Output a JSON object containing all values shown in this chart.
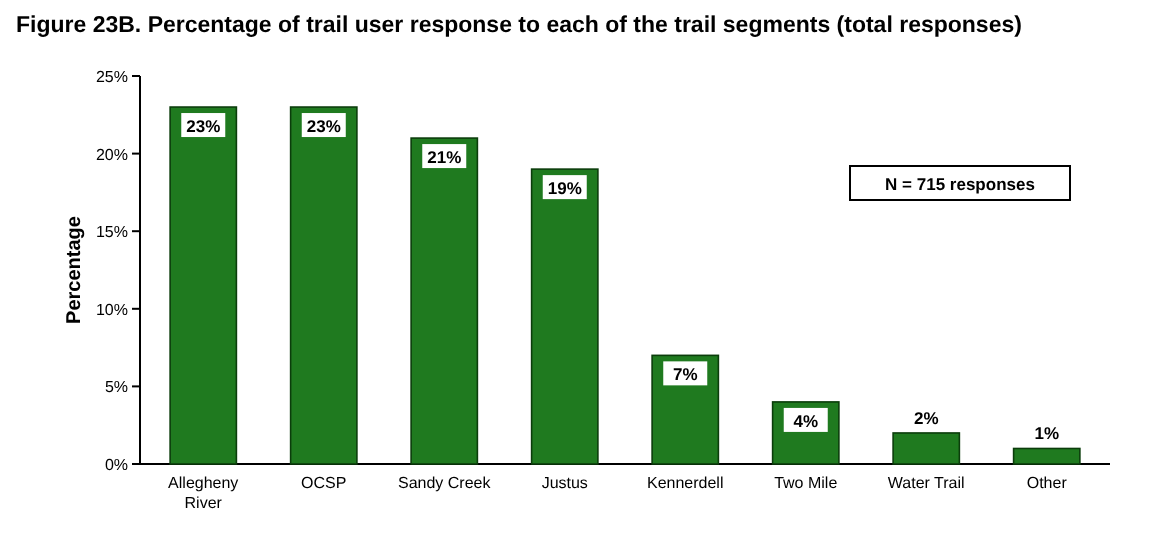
{
  "chart_data": {
    "type": "bar",
    "title": "Figure 23B.  Percentage of trail user response to each of the trail segments (total responses)",
    "ylabel": "Percentage",
    "categories": [
      "Allegheny River",
      "OCSP",
      "Sandy Creek",
      "Justus",
      "Kennerdell",
      "Two Mile",
      "Water Trail",
      "Other"
    ],
    "values": [
      23,
      23,
      21,
      19,
      7,
      4,
      2,
      1
    ],
    "value_labels": [
      "23%",
      "23%",
      "21%",
      "19%",
      "7%",
      "4%",
      "2%",
      "1%"
    ],
    "color": "#1f7a1f",
    "ylim": [
      0,
      25
    ],
    "yticks": [
      {
        "value": 0,
        "label": "0%"
      },
      {
        "value": 5,
        "label": "5%"
      },
      {
        "value": 10,
        "label": "10%"
      },
      {
        "value": 15,
        "label": "15%"
      },
      {
        "value": 20,
        "label": "20%"
      },
      {
        "value": 25,
        "label": "25%"
      }
    ],
    "annotations": [
      "N = 715 responses"
    ]
  }
}
